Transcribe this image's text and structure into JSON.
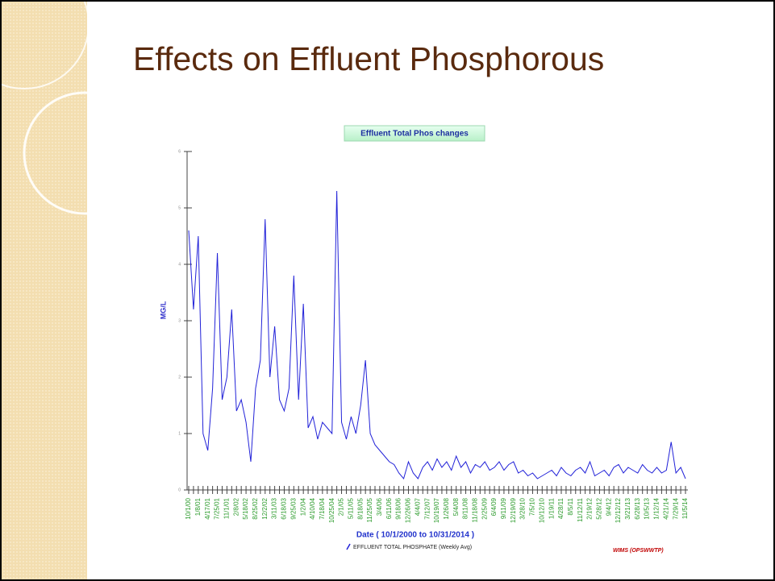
{
  "slide_title": "Effects on Effluent Phosphorous",
  "chart_data": {
    "type": "line",
    "title": "Effluent Total Phos changes",
    "y_label": "MG/L",
    "x_label": "Date  ( 10/1/2000  to  10/31/2014 )",
    "source": "WIMS (OPSWWTP)",
    "grid": false,
    "ylim": [
      0,
      6
    ],
    "yticks": [
      0,
      1,
      2,
      3,
      4,
      5,
      6
    ],
    "categories": [
      "10/1/00",
      null,
      "1/8/01",
      null,
      "4/17/01",
      null,
      "7/25/01",
      null,
      "11/1/01",
      null,
      "2/8/02",
      null,
      "5/18/02",
      null,
      "8/25/02",
      null,
      "12/2/02",
      null,
      "3/11/03",
      null,
      "6/18/03",
      null,
      "9/25/03",
      null,
      "1/2/04",
      null,
      "4/10/04",
      null,
      "7/18/04",
      null,
      "10/25/04",
      null,
      "2/1/05",
      null,
      "5/11/05",
      null,
      "8/18/05",
      null,
      "11/25/05",
      null,
      "3/4/06",
      null,
      "6/11/06",
      null,
      "9/18/06",
      null,
      "12/26/06",
      null,
      "4/4/07",
      null,
      "7/12/07",
      null,
      "10/19/07",
      null,
      "1/26/08",
      null,
      "5/4/08",
      null,
      "8/11/08",
      null,
      "11/18/08",
      null,
      "2/25/09",
      null,
      "6/4/09",
      null,
      "9/11/09",
      null,
      "12/19/09",
      null,
      "3/28/10",
      null,
      "7/5/10",
      null,
      "10/12/10",
      null,
      "1/19/11",
      null,
      "4/28/11",
      null,
      "8/5/11",
      null,
      "11/12/11",
      null,
      "2/19/12",
      null,
      "5/28/12",
      null,
      "9/4/12",
      null,
      "12/12/12",
      null,
      "3/21/13",
      null,
      "6/28/13",
      null,
      "10/5/13",
      null,
      "1/12/14",
      null,
      "4/21/14",
      null,
      "7/29/14",
      null,
      "11/5/14"
    ],
    "series": [
      {
        "name": "EFFLUENT TOTAL PHOSPHATE (Weekly Avg)",
        "color": "#2222d8",
        "values": [
          4.6,
          3.2,
          4.5,
          1.0,
          0.7,
          1.8,
          4.2,
          1.6,
          2.0,
          3.2,
          1.4,
          1.6,
          1.2,
          0.5,
          1.8,
          2.3,
          4.8,
          2.0,
          2.9,
          1.6,
          1.4,
          1.8,
          3.8,
          1.6,
          3.3,
          1.1,
          1.3,
          0.9,
          1.2,
          1.1,
          1.0,
          5.3,
          1.2,
          0.9,
          1.3,
          1.0,
          1.5,
          2.3,
          1.0,
          0.8,
          0.7,
          0.6,
          0.5,
          0.45,
          0.3,
          0.2,
          0.5,
          0.3,
          0.2,
          0.4,
          0.5,
          0.35,
          0.55,
          0.4,
          0.5,
          0.35,
          0.6,
          0.4,
          0.5,
          0.3,
          0.45,
          0.4,
          0.5,
          0.35,
          0.4,
          0.5,
          0.35,
          0.45,
          0.5,
          0.3,
          0.35,
          0.25,
          0.3,
          0.2,
          0.25,
          0.3,
          0.35,
          0.25,
          0.4,
          0.3,
          0.25,
          0.35,
          0.4,
          0.3,
          0.5,
          0.25,
          0.3,
          0.35,
          0.25,
          0.4,
          0.45,
          0.3,
          0.4,
          0.35,
          0.3,
          0.45,
          0.35,
          0.3,
          0.4,
          0.3,
          0.35,
          0.85,
          0.3,
          0.4,
          0.2
        ]
      }
    ]
  }
}
